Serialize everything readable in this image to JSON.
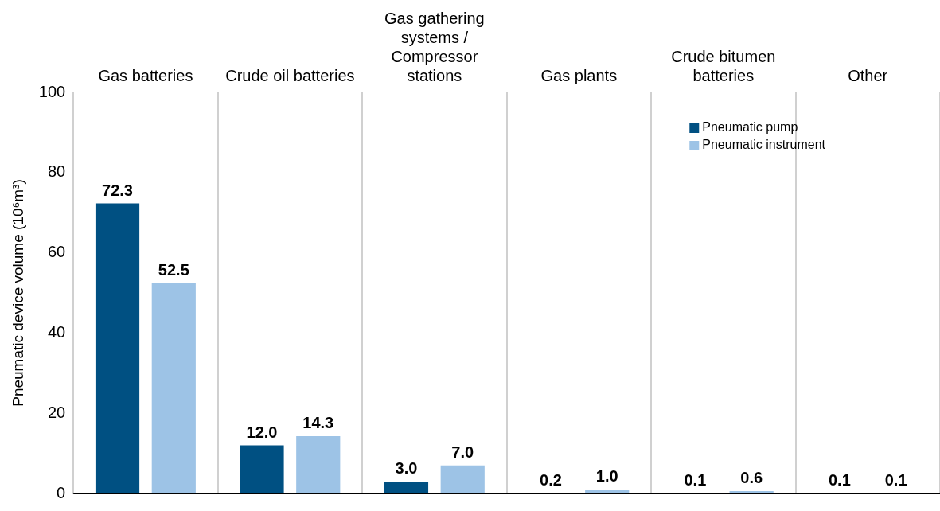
{
  "chart_data": {
    "type": "bar",
    "ylabel": "Pneumatic device volume (10⁶m³)",
    "categories": [
      "Gas batteries",
      "Crude oil batteries",
      "Gas gathering systems / Compressor stations",
      "Gas plants",
      "Crude bitumen batteries",
      "Other"
    ],
    "series": [
      {
        "name": "Pneumatic pump",
        "color": "#005082",
        "values": [
          72.3,
          12.0,
          3.0,
          0.2,
          0.1,
          0.1
        ],
        "value_labels": [
          "72.3",
          "12.0",
          "3.0",
          "0.2",
          "0.1",
          "0.1"
        ]
      },
      {
        "name": "Pneumatic instrument",
        "color": "#9dc3e6",
        "values": [
          52.5,
          14.3,
          7.0,
          1.0,
          0.6,
          0.1
        ],
        "value_labels": [
          "52.5",
          "14.3",
          "7.0",
          "1.0",
          "0.6",
          "0.1"
        ]
      }
    ],
    "ylim": [
      0,
      100
    ],
    "yticks": [
      0,
      20,
      40,
      60,
      80,
      100
    ],
    "grid": "x",
    "legend": "top right"
  }
}
